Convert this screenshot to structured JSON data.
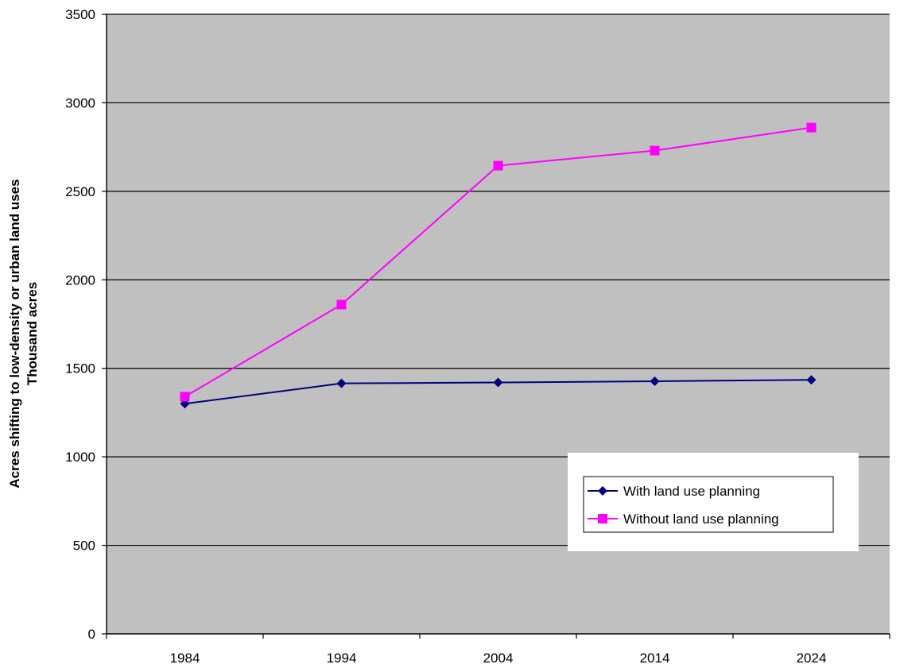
{
  "chart_data": {
    "type": "line",
    "title": "",
    "xlabel": "",
    "ylabel_lines": [
      "Acres shifting to low-density or urban land uses",
      "Thousand acres"
    ],
    "categories": [
      "1984",
      "1994",
      "2004",
      "2014",
      "2024"
    ],
    "ylim": [
      0,
      3500
    ],
    "yticks": [
      0,
      500,
      1000,
      1500,
      2000,
      2500,
      3000,
      3500
    ],
    "grid": "horizontal",
    "legend_position": "right-center",
    "series": [
      {
        "name": "With land use planning",
        "values": [
          1300,
          1415,
          1420,
          1427,
          1435
        ],
        "color": "#000080",
        "marker": "diamond"
      },
      {
        "name": "Without land use planning",
        "values": [
          1340,
          1860,
          2645,
          2730,
          2860
        ],
        "color": "#FF00FF",
        "marker": "square"
      }
    ],
    "colors": {
      "plot_background": "#C0C0C0",
      "gridline": "#000000",
      "axis": "#000000"
    }
  }
}
